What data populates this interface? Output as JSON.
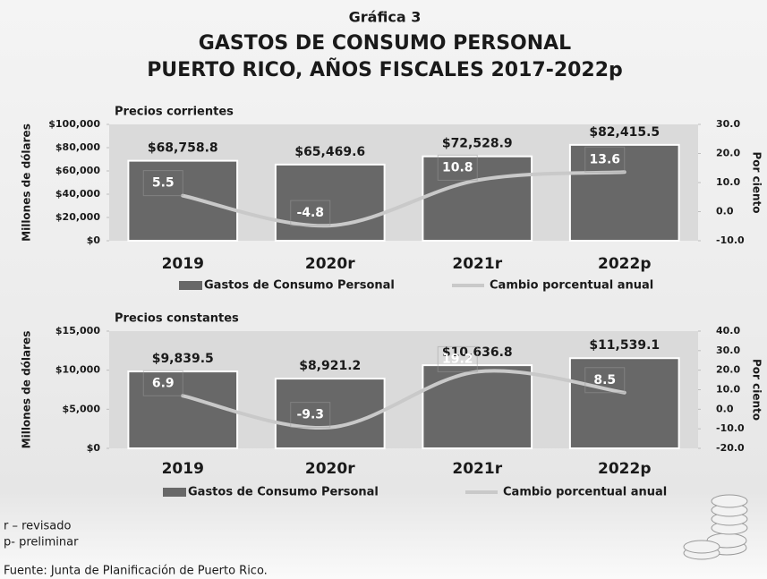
{
  "header": {
    "label": "Gráfica 3",
    "title": [
      "GASTOS DE CONSUMO PERSONAL",
      "PUERTO RICO, AÑOS FISCALES 2017-2022p"
    ]
  },
  "chart_data": [
    {
      "type": "combo",
      "title": "Precios corrientes",
      "ylabel": "Millones de dólares",
      "y2label": "Por ciento",
      "categories": [
        "2019",
        "2020r",
        "2021r",
        "2022p"
      ],
      "ylim": [
        0,
        100000
      ],
      "yticks": [
        {
          "value": 0,
          "label": "$0"
        },
        {
          "value": 20000,
          "label": "$20,000"
        },
        {
          "value": 40000,
          "label": "$40,000"
        },
        {
          "value": 60000,
          "label": "$60,000"
        },
        {
          "value": 80000,
          "label": "$80,000"
        },
        {
          "value": 100000,
          "label": "$100,000"
        }
      ],
      "y2lim": [
        -10,
        30
      ],
      "y2ticks": [
        {
          "value": -10,
          "label": "-10.0"
        },
        {
          "value": 0,
          "label": "0.0"
        },
        {
          "value": 10,
          "label": "10.0"
        },
        {
          "value": 20,
          "label": "20.0"
        },
        {
          "value": 30,
          "label": "30.0"
        }
      ],
      "series": [
        {
          "name": "Gastos de Consumo Personal",
          "type": "bar",
          "color": "#686868",
          "values": [
            68758.8,
            65469.6,
            72528.9,
            82415.5
          ],
          "value_labels": [
            "$68,758.8",
            "$65,469.6",
            "$72,528.9",
            "$82,415.5"
          ]
        },
        {
          "name": "Cambio porcentual anual",
          "type": "line",
          "axis": "y2",
          "color": "#c9c9c9",
          "values": [
            5.5,
            -4.8,
            10.8,
            13.6
          ]
        }
      ]
    },
    {
      "type": "combo",
      "title": "Precios constantes",
      "ylabel": "Millones de dólares",
      "y2label": "Por ciento",
      "categories": [
        "2019",
        "2020r",
        "2021r",
        "2022p"
      ],
      "ylim": [
        0,
        15000
      ],
      "yticks": [
        {
          "value": 0,
          "label": "$0"
        },
        {
          "value": 5000,
          "label": "$5,000"
        },
        {
          "value": 10000,
          "label": "$10,000"
        },
        {
          "value": 15000,
          "label": "$15,000"
        }
      ],
      "y2lim": [
        -20,
        40
      ],
      "y2ticks": [
        {
          "value": -20,
          "label": "-20.0"
        },
        {
          "value": -10,
          "label": "-10.0"
        },
        {
          "value": 0,
          "label": "0.0"
        },
        {
          "value": 10,
          "label": "10.0"
        },
        {
          "value": 20,
          "label": "20.0"
        },
        {
          "value": 30,
          "label": "30.0"
        },
        {
          "value": 40,
          "label": "40.0"
        }
      ],
      "series": [
        {
          "name": "Gastos de Consumo Personal",
          "type": "bar",
          "color": "#686868",
          "values": [
            9839.5,
            8921.2,
            10636.8,
            11539.1
          ],
          "value_labels": [
            "$9,839.5",
            "$8,921.2",
            "$10,636.8",
            "$11,539.1"
          ]
        },
        {
          "name": "Cambio porcentual anual",
          "type": "line",
          "axis": "y2",
          "color": "#c9c9c9",
          "values": [
            6.9,
            -9.3,
            19.2,
            8.5
          ]
        }
      ]
    }
  ],
  "notes": [
    "r – revisado",
    "p- preliminar"
  ],
  "source": "Fuente: Junta de Planificación de Puerto Rico."
}
